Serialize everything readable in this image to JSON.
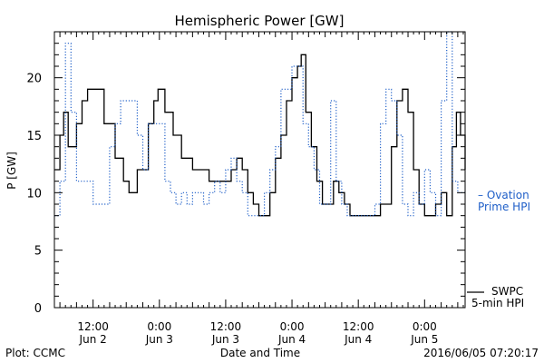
{
  "chart_data": {
    "type": "line",
    "title": "Hemispheric Power [GW]",
    "ylabel": "P [GW]",
    "xlabel": "Date and Time",
    "ylim": [
      0,
      24
    ],
    "xlim": [
      "2016-06-02T05:00",
      "2016-06-05T07:20"
    ],
    "yticks": [
      0,
      5,
      10,
      15,
      20
    ],
    "xticks": [
      {
        "t": "2016-06-02T12:00",
        "time": "12:00",
        "date": "Jun 2"
      },
      {
        "t": "2016-06-03T00:00",
        "time": "0:00",
        "date": "Jun 3"
      },
      {
        "t": "2016-06-03T12:00",
        "time": "12:00",
        "date": "Jun 3"
      },
      {
        "t": "2016-06-04T00:00",
        "time": "0:00",
        "date": "Jun 4"
      },
      {
        "t": "2016-06-04T12:00",
        "time": "12:00",
        "date": "Jun 4"
      },
      {
        "t": "2016-06-05T00:00",
        "time": "0:00",
        "date": "Jun 5"
      }
    ],
    "grid": false,
    "series": [
      {
        "name": "SWPC 5-min HPI",
        "legend": [
          "SWPC",
          "5-min HPI"
        ],
        "color": "#000000",
        "style": "solid",
        "points": [
          [
            "2016-06-02T05:00",
            12
          ],
          [
            "2016-06-02T06:00",
            15
          ],
          [
            "2016-06-02T06:40",
            17
          ],
          [
            "2016-06-02T07:30",
            14
          ],
          [
            "2016-06-02T09:00",
            16
          ],
          [
            "2016-06-02T10:00",
            18
          ],
          [
            "2016-06-02T11:00",
            19
          ],
          [
            "2016-06-02T12:30",
            19
          ],
          [
            "2016-06-02T14:00",
            16
          ],
          [
            "2016-06-02T16:00",
            13
          ],
          [
            "2016-06-02T17:30",
            11
          ],
          [
            "2016-06-02T18:30",
            10
          ],
          [
            "2016-06-02T20:00",
            12
          ],
          [
            "2016-06-02T22:00",
            16
          ],
          [
            "2016-06-02T23:00",
            18
          ],
          [
            "2016-06-02T23:45",
            19
          ],
          [
            "2016-06-03T01:00",
            17
          ],
          [
            "2016-06-03T02:30",
            15
          ],
          [
            "2016-06-03T04:00",
            13
          ],
          [
            "2016-06-03T06:00",
            12
          ],
          [
            "2016-06-03T08:00",
            12
          ],
          [
            "2016-06-03T09:00",
            11
          ],
          [
            "2016-06-03T11:00",
            11
          ],
          [
            "2016-06-03T12:00",
            11
          ],
          [
            "2016-06-03T13:00",
            12
          ],
          [
            "2016-06-03T14:00",
            13
          ],
          [
            "2016-06-03T15:00",
            12
          ],
          [
            "2016-06-03T16:00",
            10
          ],
          [
            "2016-06-03T17:00",
            9
          ],
          [
            "2016-06-03T18:00",
            8
          ],
          [
            "2016-06-03T19:00",
            8
          ],
          [
            "2016-06-03T20:00",
            10
          ],
          [
            "2016-06-03T21:00",
            13
          ],
          [
            "2016-06-03T22:00",
            15
          ],
          [
            "2016-06-03T23:00",
            18
          ],
          [
            "2016-06-04T00:00",
            20
          ],
          [
            "2016-06-04T01:00",
            21
          ],
          [
            "2016-06-04T01:40",
            22
          ],
          [
            "2016-06-04T02:30",
            17
          ],
          [
            "2016-06-04T03:30",
            14
          ],
          [
            "2016-06-04T04:30",
            11
          ],
          [
            "2016-06-04T05:30",
            9
          ],
          [
            "2016-06-04T06:30",
            9
          ],
          [
            "2016-06-04T07:30",
            11
          ],
          [
            "2016-06-04T08:30",
            10
          ],
          [
            "2016-06-04T09:30",
            9
          ],
          [
            "2016-06-04T10:30",
            8
          ],
          [
            "2016-06-04T12:00",
            8
          ],
          [
            "2016-06-04T14:00",
            8
          ],
          [
            "2016-06-04T16:00",
            9
          ],
          [
            "2016-06-04T18:00",
            14
          ],
          [
            "2016-06-04T19:00",
            18
          ],
          [
            "2016-06-04T20:00",
            19
          ],
          [
            "2016-06-04T21:00",
            17
          ],
          [
            "2016-06-04T22:00",
            12
          ],
          [
            "2016-06-04T23:00",
            9
          ],
          [
            "2016-06-05T00:00",
            8
          ],
          [
            "2016-06-05T01:00",
            8
          ],
          [
            "2016-06-05T02:00",
            9
          ],
          [
            "2016-06-05T03:00",
            10
          ],
          [
            "2016-06-05T04:00",
            8
          ],
          [
            "2016-06-05T05:00",
            14
          ],
          [
            "2016-06-05T05:45",
            17
          ],
          [
            "2016-06-05T06:30",
            15
          ],
          [
            "2016-06-05T07:20",
            12
          ]
        ]
      },
      {
        "name": "Ovation Prime HPI",
        "legend": [
          "– Ovation",
          "Prime HPI"
        ],
        "color": "#1f5fc8",
        "style": "dotted",
        "points": [
          [
            "2016-06-02T05:00",
            8
          ],
          [
            "2016-06-02T06:00",
            11
          ],
          [
            "2016-06-02T07:00",
            23
          ],
          [
            "2016-06-02T08:00",
            17
          ],
          [
            "2016-06-02T09:00",
            11
          ],
          [
            "2016-06-02T11:00",
            11
          ],
          [
            "2016-06-02T12:00",
            9
          ],
          [
            "2016-06-02T14:00",
            9
          ],
          [
            "2016-06-02T15:00",
            14
          ],
          [
            "2016-06-02T16:00",
            16
          ],
          [
            "2016-06-02T17:00",
            18
          ],
          [
            "2016-06-02T19:00",
            18
          ],
          [
            "2016-06-02T20:00",
            15
          ],
          [
            "2016-06-02T21:00",
            12
          ],
          [
            "2016-06-02T22:00",
            16
          ],
          [
            "2016-06-03T00:00",
            16
          ],
          [
            "2016-06-03T01:00",
            11
          ],
          [
            "2016-06-03T02:00",
            10
          ],
          [
            "2016-06-03T03:00",
            9
          ],
          [
            "2016-06-03T04:00",
            10
          ],
          [
            "2016-06-03T05:00",
            9
          ],
          [
            "2016-06-03T06:00",
            10
          ],
          [
            "2016-06-03T07:00",
            10
          ],
          [
            "2016-06-03T08:00",
            9
          ],
          [
            "2016-06-03T09:00",
            10
          ],
          [
            "2016-06-03T10:00",
            11
          ],
          [
            "2016-06-03T11:00",
            10
          ],
          [
            "2016-06-03T12:00",
            12
          ],
          [
            "2016-06-03T13:00",
            13
          ],
          [
            "2016-06-03T14:00",
            11
          ],
          [
            "2016-06-03T15:00",
            10
          ],
          [
            "2016-06-03T16:00",
            8
          ],
          [
            "2016-06-03T18:00",
            8
          ],
          [
            "2016-06-03T19:00",
            10
          ],
          [
            "2016-06-03T20:00",
            12
          ],
          [
            "2016-06-03T21:00",
            14
          ],
          [
            "2016-06-03T22:00",
            19
          ],
          [
            "2016-06-04T00:00",
            21
          ],
          [
            "2016-06-04T01:00",
            21
          ],
          [
            "2016-06-04T02:00",
            16
          ],
          [
            "2016-06-04T03:00",
            14
          ],
          [
            "2016-06-04T04:00",
            12
          ],
          [
            "2016-06-04T05:00",
            9
          ],
          [
            "2016-06-04T06:00",
            9
          ],
          [
            "2016-06-04T07:00",
            18
          ],
          [
            "2016-06-04T08:00",
            11
          ],
          [
            "2016-06-04T09:00",
            9
          ],
          [
            "2016-06-04T10:00",
            8
          ],
          [
            "2016-06-04T12:00",
            8
          ],
          [
            "2016-06-04T14:00",
            8
          ],
          [
            "2016-06-04T15:00",
            9
          ],
          [
            "2016-06-04T16:00",
            16
          ],
          [
            "2016-06-04T17:00",
            19
          ],
          [
            "2016-06-04T18:00",
            18
          ],
          [
            "2016-06-04T19:00",
            15
          ],
          [
            "2016-06-04T20:00",
            9
          ],
          [
            "2016-06-04T21:00",
            8
          ],
          [
            "2016-06-04T22:00",
            10
          ],
          [
            "2016-06-04T23:00",
            9
          ],
          [
            "2016-06-05T00:00",
            12
          ],
          [
            "2016-06-05T01:00",
            10
          ],
          [
            "2016-06-05T02:00",
            8
          ],
          [
            "2016-06-05T03:00",
            18
          ],
          [
            "2016-06-05T04:00",
            24
          ],
          [
            "2016-06-05T05:00",
            11
          ],
          [
            "2016-06-05T06:00",
            10
          ],
          [
            "2016-06-05T07:00",
            10
          ],
          [
            "2016-06-05T07:20",
            10
          ]
        ]
      }
    ]
  },
  "footer": {
    "left": "Plot: CCMC",
    "right": "2016/06/05 07:20:17"
  }
}
